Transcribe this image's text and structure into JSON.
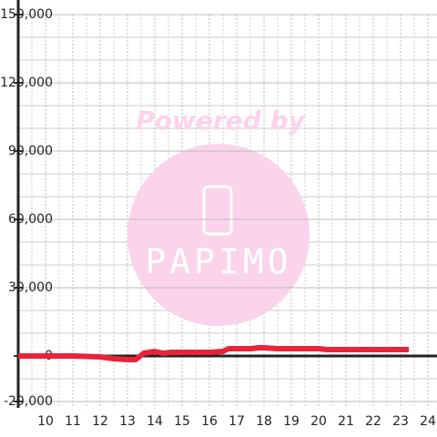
{
  "chart_data": {
    "type": "line",
    "watermark": {
      "caption": "Powered by",
      "logo": "PAPIMO"
    },
    "x": [
      9,
      11,
      12,
      12.5,
      13,
      13.3,
      13.6,
      14,
      14.3,
      14.6,
      15,
      16,
      16.5,
      16.7,
      17,
      17.5,
      17.8,
      18,
      18.5,
      19,
      20,
      20.3,
      21,
      22,
      23,
      23.3
    ],
    "series": [
      {
        "color": "#e8233a",
        "values": [
          0,
          0,
          -400,
          -1200,
          -1600,
          -1600,
          1200,
          2000,
          1200,
          1600,
          1600,
          1600,
          2000,
          3200,
          3200,
          3200,
          3600,
          3600,
          3200,
          3200,
          3200,
          2800,
          2800,
          2800,
          2800,
          2800
        ]
      }
    ],
    "xlim": [
      9,
      24.3
    ],
    "ylim": [
      -23000,
      150000
    ],
    "xticks": [
      10,
      11,
      12,
      13,
      14,
      15,
      16,
      17,
      18,
      19,
      20,
      21,
      22,
      23,
      24
    ],
    "yticks": [
      {
        "value": -20000,
        "label": "-20,000"
      },
      0,
      {
        "value": 30000,
        "label": "30,000"
      },
      {
        "value": 60000,
        "label": "60,000"
      },
      {
        "value": 90000,
        "label": "90,000"
      },
      {
        "value": 120000,
        "label": "120,000"
      },
      {
        "value": 150000,
        "label": "150,000"
      }
    ],
    "y_minor_grid": [
      -10000,
      10000,
      20000,
      40000,
      50000,
      70000,
      80000,
      100000,
      110000,
      130000,
      140000
    ],
    "x_minor_grid": [
      9.5,
      10.5,
      11.5,
      12.5,
      13.5,
      14.5,
      15.5,
      16.5,
      17.5,
      18.5,
      19.5,
      20.5,
      21.5,
      22.5,
      23.5
    ],
    "grid": true
  }
}
